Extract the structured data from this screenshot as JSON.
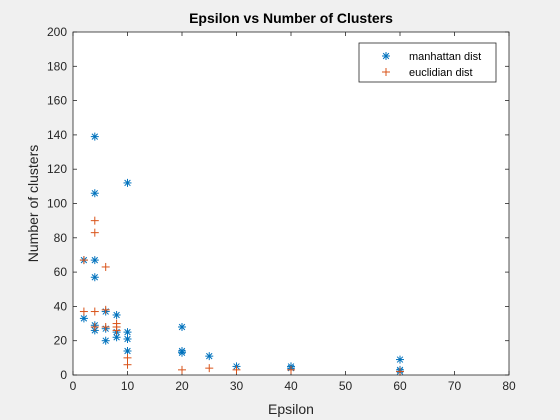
{
  "chart_data": {
    "type": "scatter",
    "title": "Epsilon vs Number of Clusters",
    "xlabel": "Epsilon",
    "ylabel": "Number of clusters",
    "xlim": [
      0,
      80
    ],
    "ylim": [
      0,
      200
    ],
    "xticks": [
      0,
      10,
      20,
      30,
      40,
      50,
      60,
      70,
      80
    ],
    "yticks": [
      0,
      20,
      40,
      60,
      80,
      100,
      120,
      140,
      160,
      180,
      200
    ],
    "grid": false,
    "legend_position": "top-right",
    "series": [
      {
        "name": "manhattan dist",
        "marker": "asterisk",
        "color": "#0072BD",
        "points": [
          [
            2,
            67
          ],
          [
            2,
            33
          ],
          [
            4,
            139
          ],
          [
            4,
            106
          ],
          [
            4,
            67
          ],
          [
            4,
            57
          ],
          [
            4,
            29
          ],
          [
            4,
            26
          ],
          [
            6,
            37
          ],
          [
            6,
            27
          ],
          [
            6,
            20
          ],
          [
            8,
            35
          ],
          [
            8,
            25
          ],
          [
            8,
            22
          ],
          [
            10,
            112
          ],
          [
            10,
            25
          ],
          [
            10,
            21
          ],
          [
            10,
            14
          ],
          [
            20,
            28
          ],
          [
            20,
            14
          ],
          [
            20,
            13
          ],
          [
            25,
            11
          ],
          [
            30,
            5
          ],
          [
            40,
            5
          ],
          [
            40,
            4
          ],
          [
            60,
            9
          ],
          [
            60,
            3
          ],
          [
            60,
            2
          ]
        ]
      },
      {
        "name": "euclidian dist",
        "marker": "plus",
        "color": "#D95319",
        "points": [
          [
            2,
            67
          ],
          [
            2,
            37
          ],
          [
            4,
            90
          ],
          [
            4,
            83
          ],
          [
            4,
            37
          ],
          [
            4,
            28
          ],
          [
            6,
            63
          ],
          [
            6,
            38
          ],
          [
            6,
            28
          ],
          [
            8,
            30
          ],
          [
            8,
            28
          ],
          [
            8,
            26
          ],
          [
            10,
            10
          ],
          [
            10,
            6
          ],
          [
            20,
            3
          ],
          [
            25,
            4
          ],
          [
            30,
            3
          ],
          [
            40,
            3
          ],
          [
            60,
            2
          ]
        ]
      }
    ]
  }
}
